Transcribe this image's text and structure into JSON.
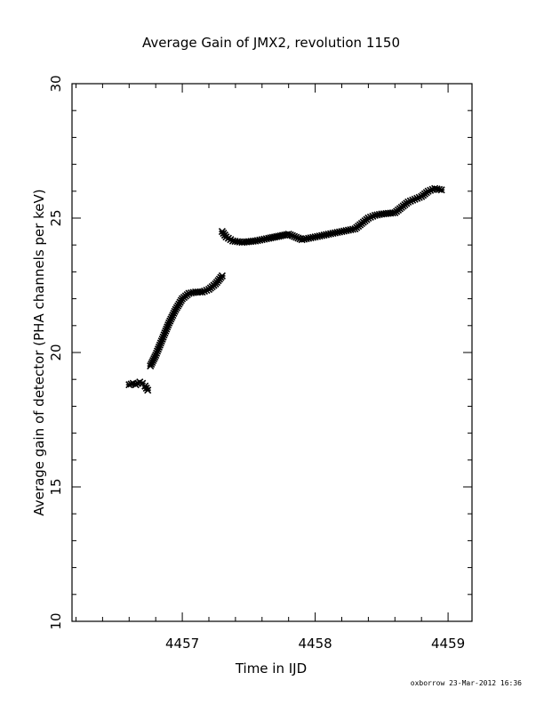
{
  "chart_data": {
    "type": "scatter",
    "title": "Average Gain of JMX2, revolution 1150",
    "xlabel": "Time in IJD",
    "ylabel": "Average gain of detector (PHA channels per keV)",
    "xlim": [
      4456.17,
      4459.18
    ],
    "ylim": [
      10,
      30
    ],
    "xticks": [
      4457,
      4458,
      4459
    ],
    "yticks": [
      10,
      15,
      20,
      25,
      30
    ],
    "marker": "cross",
    "grid": false,
    "series": [
      {
        "points": [
          [
            4456.6,
            18.8
          ],
          [
            4456.63,
            18.85
          ],
          [
            4456.65,
            18.8
          ],
          [
            4456.68,
            18.9
          ],
          [
            4456.7,
            18.85
          ],
          [
            4456.72,
            18.75
          ],
          [
            4456.74,
            18.6
          ],
          [
            4456.76,
            19.5
          ],
          [
            4456.8,
            19.9
          ],
          [
            4456.85,
            20.5
          ],
          [
            4456.9,
            21.1
          ],
          [
            4456.95,
            21.6
          ],
          [
            4457.0,
            22.0
          ],
          [
            4457.05,
            22.2
          ],
          [
            4457.1,
            22.25
          ],
          [
            4457.15,
            22.25
          ],
          [
            4457.2,
            22.35
          ],
          [
            4457.25,
            22.55
          ],
          [
            4457.3,
            22.85
          ],
          [
            4457.3,
            24.5
          ],
          [
            4457.33,
            24.3
          ],
          [
            4457.38,
            24.15
          ],
          [
            4457.45,
            24.1
          ],
          [
            4457.55,
            24.15
          ],
          [
            4457.65,
            24.25
          ],
          [
            4457.8,
            24.4
          ],
          [
            4457.9,
            24.2
          ],
          [
            4458.0,
            24.3
          ],
          [
            4458.1,
            24.4
          ],
          [
            4458.2,
            24.5
          ],
          [
            4458.3,
            24.6
          ],
          [
            4458.4,
            25.0
          ],
          [
            4458.45,
            25.1
          ],
          [
            4458.5,
            25.15
          ],
          [
            4458.6,
            25.2
          ],
          [
            4458.7,
            25.6
          ],
          [
            4458.75,
            25.7
          ],
          [
            4458.8,
            25.8
          ],
          [
            4458.85,
            26.0
          ],
          [
            4458.9,
            26.1
          ],
          [
            4458.95,
            26.05
          ]
        ]
      }
    ]
  },
  "footer": {
    "text": "oxborrow 23-Mar-2012 16:36"
  }
}
